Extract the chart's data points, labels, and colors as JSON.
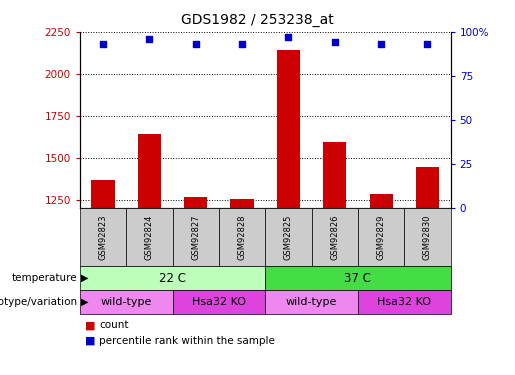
{
  "title": "GDS1982 / 253238_at",
  "samples": [
    "GSM92823",
    "GSM92824",
    "GSM92827",
    "GSM92828",
    "GSM92825",
    "GSM92826",
    "GSM92829",
    "GSM92830"
  ],
  "counts": [
    1370,
    1640,
    1265,
    1255,
    2140,
    1595,
    1285,
    1445
  ],
  "percentile_ranks": [
    93,
    96,
    93,
    93,
    97,
    94,
    93,
    93
  ],
  "ylim_left": [
    1200,
    2250
  ],
  "ylim_right": [
    0,
    100
  ],
  "yticks_left": [
    1250,
    1500,
    1750,
    2000,
    2250
  ],
  "yticks_right": [
    0,
    25,
    50,
    75,
    100
  ],
  "ytick_labels_right": [
    "0",
    "25",
    "50",
    "75",
    "100%"
  ],
  "bar_color": "#cc0000",
  "dot_color": "#0000cc",
  "bar_width": 0.5,
  "temperature_groups": [
    {
      "label": "22 C",
      "start": 0,
      "end": 4,
      "color": "#bbffbb"
    },
    {
      "label": "37 C",
      "start": 4,
      "end": 8,
      "color": "#44dd44"
    }
  ],
  "genotype_groups": [
    {
      "label": "wild-type",
      "start": 0,
      "end": 2,
      "color": "#ee88ee"
    },
    {
      "label": "Hsa32 KO",
      "start": 2,
      "end": 4,
      "color": "#dd44dd"
    },
    {
      "label": "wild-type",
      "start": 4,
      "end": 6,
      "color": "#ee88ee"
    },
    {
      "label": "Hsa32 KO",
      "start": 6,
      "end": 8,
      "color": "#dd44dd"
    }
  ],
  "annotation_temperature": "temperature",
  "annotation_genotype": "genotype/variation",
  "legend_count_label": "count",
  "legend_pct_label": "percentile rank within the sample",
  "tick_label_color_left": "#cc0000",
  "tick_label_color_right": "#0000cc",
  "sample_box_color": "#cccccc"
}
